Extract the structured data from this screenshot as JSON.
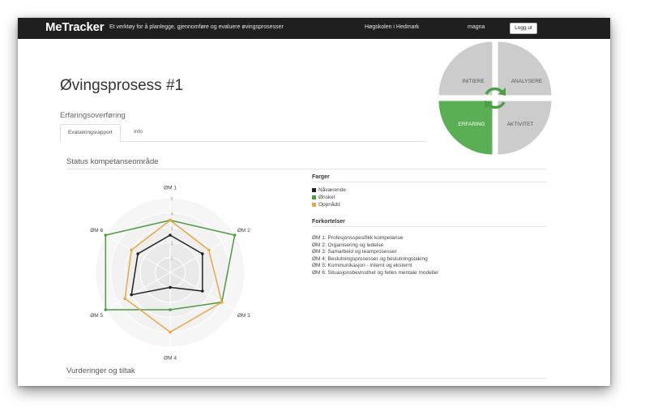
{
  "navbar": {
    "brand": "MeTracker",
    "tagline": "Et verktøy for å planlegge, gjennomføre og evaluere øvingsprosesser",
    "institution": "Høgskolen i Hedmark",
    "user": "magna",
    "logout_label": "Logg ut"
  },
  "page": {
    "title": "Øvingsprosess #1",
    "subtitle": "Erfaringsoverføring",
    "tabs": [
      {
        "label": "Evalueringsrapport",
        "active": true
      },
      {
        "label": "Info",
        "active": false
      }
    ]
  },
  "phase_wheel": {
    "segments": [
      {
        "label": "INITIERE",
        "active": false
      },
      {
        "label": "ANALYSERE",
        "active": false
      },
      {
        "label": "ERFARING",
        "active": true
      },
      {
        "label": "AKTIVITET",
        "active": false
      }
    ],
    "colors": {
      "active": "#5aae53",
      "inactive": "#cccccc",
      "cycle_arrows": "#4e9e49"
    }
  },
  "status": {
    "section_title": "Status kompetanseområde",
    "legend_title": "Farger",
    "legend": [
      {
        "label": "Nåværende",
        "color": "#222222"
      },
      {
        "label": "Ønsket",
        "color": "#4e9a45"
      },
      {
        "label": "Oppnådd",
        "color": "#e8a84a"
      }
    ],
    "abbreviations_title": "Forkortelser",
    "abbreviations": [
      "ØM 1: Profesjonsspesifikk kompetanse",
      "ØM 2: Organisering og ledelse",
      "ØM 3: Samarbeid og teamprosesser",
      "ØM 4: Beslutningsprosesser og beslutningstaking",
      "ØM 5: Kommunikasjon - internt og eksternt",
      "ØM 6: Situasjonsbevissthet og felles mentale modeller"
    ]
  },
  "chart_data": {
    "type": "radar",
    "categories": [
      "ØM 1",
      "ØM 2",
      "ØM 3",
      "ØM 4",
      "ØM 5",
      "ØM 6"
    ],
    "tick_labels": [
      "1",
      "2",
      "3",
      "4",
      "5"
    ],
    "range": [
      0,
      5
    ],
    "series": [
      {
        "name": "Nåværende",
        "values": [
          2.5,
          2.5,
          2.5,
          1.0,
          3.0,
          2.5
        ]
      },
      {
        "name": "Ønsket",
        "values": [
          3.5,
          5.0,
          4.0,
          2.5,
          5.0,
          5.0
        ]
      },
      {
        "name": "Oppnådd",
        "values": [
          3.5,
          3.0,
          4.0,
          4.0,
          3.5,
          3.0
        ]
      }
    ]
  },
  "vurderinger": {
    "section_title": "Vurderinger og tiltak"
  }
}
